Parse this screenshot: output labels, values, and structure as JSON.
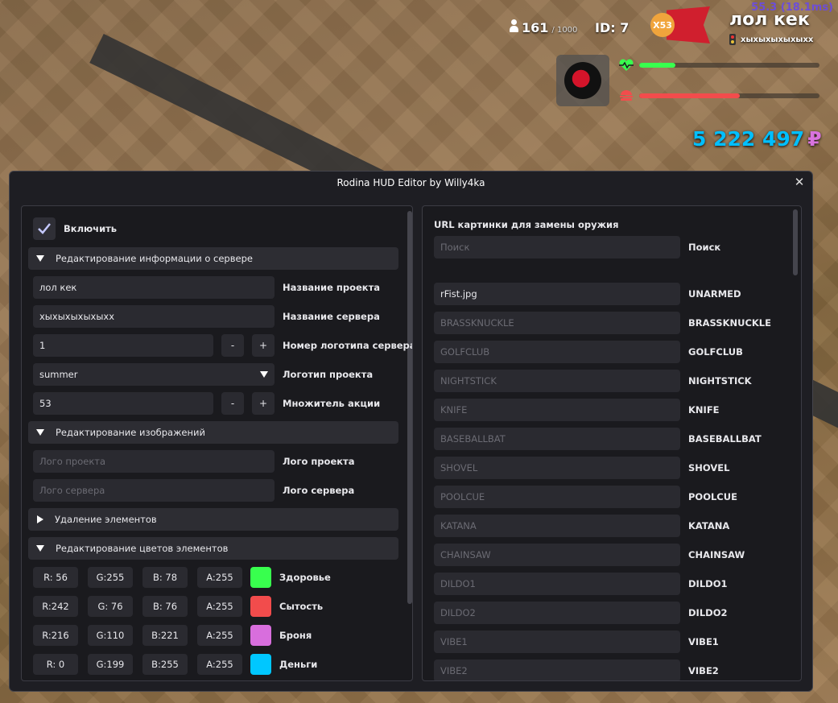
{
  "hud": {
    "fps": "55.3 (18.1ms)",
    "online": "161",
    "online_max": "/ 1000",
    "id": "ID: 7",
    "multiplier": "X53",
    "project_name": "лол кек",
    "server_name": "хыхыхыхыхыхх",
    "health_level": 0.2,
    "satiety_level": 0.56,
    "money": "5 222 497",
    "currency": "₽"
  },
  "window": {
    "title": "Rodina HUD Editor by Willy4ka"
  },
  "left": {
    "enable_label": "Включить",
    "section_server": "Редактирование информации о сервере",
    "project_name_value": "лол кек",
    "project_name_label": "Название проекта",
    "server_name_value": "хыхыхыхыхыхх",
    "server_name_label": "Название сервера",
    "logo_number_value": "1",
    "logo_number_label": "Номер логотипа сервера",
    "minus": "-",
    "plus": "+",
    "project_logo_value": "summer",
    "project_logo_label": "Логотип проекта",
    "multiplier_value": "53",
    "multiplier_label": "Множитель акции",
    "section_images": "Редактирование изображений",
    "project_logo_placeholder": "Лого проекта",
    "project_logo_img_label": "Лого проекта",
    "server_logo_placeholder": "Лого сервера",
    "server_logo_img_label": "Лого сервера",
    "section_remove": "Удаление элементов",
    "section_colors": "Редактирование цветов элементов",
    "colors": [
      {
        "r": "R: 56",
        "g": "G:255",
        "b": "B: 78",
        "a": "A:255",
        "color": "#38ff4e",
        "label": "Здоровье"
      },
      {
        "r": "R:242",
        "g": "G: 76",
        "b": "B: 76",
        "a": "A:255",
        "color": "#f24c4c",
        "label": "Сытость"
      },
      {
        "r": "R:216",
        "g": "G:110",
        "b": "B:221",
        "a": "A:255",
        "color": "#d86edd",
        "label": "Броня"
      },
      {
        "r": "R:  0",
        "g": "G:199",
        "b": "B:255",
        "a": "A:255",
        "color": "#00c7ff",
        "label": "Деньги"
      }
    ]
  },
  "right": {
    "heading": "URL картинки для замены оружия",
    "search_placeholder": "Поиск",
    "search_label": "Поиск",
    "weapons": [
      {
        "value": "rFist.jpg",
        "placeholder": "",
        "label": "UNARMED"
      },
      {
        "value": "",
        "placeholder": "BRASSKNUCKLE",
        "label": "BRASSKNUCKLE"
      },
      {
        "value": "",
        "placeholder": "GOLFCLUB",
        "label": "GOLFCLUB"
      },
      {
        "value": "",
        "placeholder": "NIGHTSTICK",
        "label": "NIGHTSTICK"
      },
      {
        "value": "",
        "placeholder": "KNIFE",
        "label": "KNIFE"
      },
      {
        "value": "",
        "placeholder": "BASEBALLBAT",
        "label": "BASEBALLBAT"
      },
      {
        "value": "",
        "placeholder": "SHOVEL",
        "label": "SHOVEL"
      },
      {
        "value": "",
        "placeholder": "POOLCUE",
        "label": "POOLCUE"
      },
      {
        "value": "",
        "placeholder": "KATANA",
        "label": "KATANA"
      },
      {
        "value": "",
        "placeholder": "CHAINSAW",
        "label": "CHAINSAW"
      },
      {
        "value": "",
        "placeholder": "DILDO1",
        "label": "DILDO1"
      },
      {
        "value": "",
        "placeholder": "DILDO2",
        "label": "DILDO2"
      },
      {
        "value": "",
        "placeholder": "VIBE1",
        "label": "VIBE1"
      },
      {
        "value": "",
        "placeholder": "VIBE2",
        "label": "VIBE2"
      }
    ]
  }
}
